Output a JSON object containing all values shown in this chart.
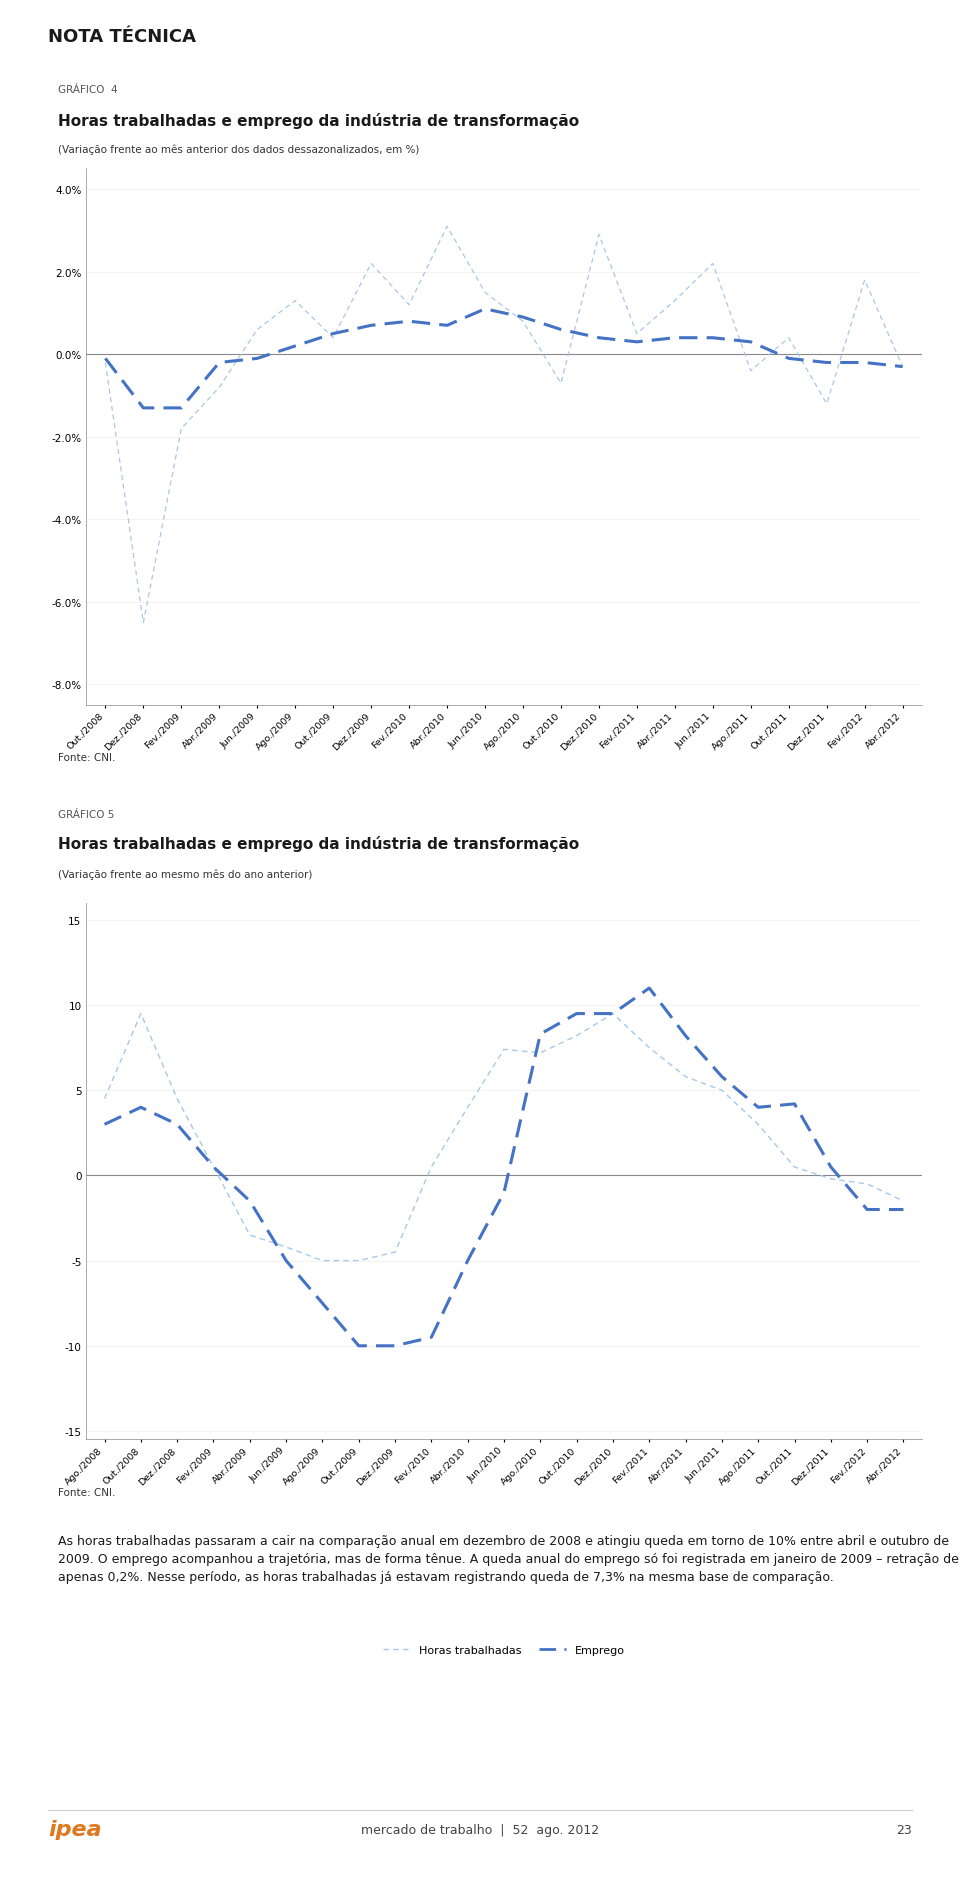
{
  "page_title": "NOTA TÉCNICA",
  "chart4": {
    "grafico_label": "GRÁFICO  4",
    "title": "Horas trabalhadas e emprego da indústria de transformação",
    "subtitle": "(Variação frente ao mês anterior dos dados dessazonalizados, em %)",
    "fonte": "Fonte: CNI.",
    "ylim": [
      -8.5,
      4.5
    ],
    "yticks": [
      4.0,
      2.0,
      0.0,
      -2.0,
      -4.0,
      -6.0,
      -8.0
    ],
    "x_labels": [
      "Out./2008",
      "Dez./2008",
      "Fev./2009",
      "Abr./2009",
      "Jun./2009",
      "Ago./2009",
      "Out./2009",
      "Dez./2009",
      "Fev./2010",
      "Abr./2010",
      "Jun./2010",
      "Ago./2010",
      "Out./2010",
      "Dez./2010",
      "Fev./2011",
      "Abr./2011",
      "Jun./2011",
      "Ago./2011",
      "Out./2011",
      "Dez./2011",
      "Fev./2012",
      "Abr./2012"
    ],
    "emprego": [
      -0.1,
      -1.3,
      -1.3,
      -0.2,
      -0.1,
      0.2,
      0.5,
      0.7,
      0.8,
      0.7,
      1.1,
      0.9,
      0.6,
      0.4,
      0.3,
      0.4,
      0.4,
      0.3,
      -0.1,
      -0.2,
      -0.2,
      -0.3
    ],
    "horas_trabalhadas": [
      -0.2,
      -6.5,
      -1.8,
      -0.8,
      0.6,
      1.3,
      0.4,
      2.2,
      1.2,
      3.1,
      1.5,
      0.8,
      -0.7,
      2.9,
      0.5,
      1.3,
      2.2,
      -0.4,
      0.4,
      -1.2,
      1.8,
      -0.3
    ],
    "legend_emprego": "Emprego",
    "legend_horas": "Horas trabalhadas"
  },
  "chart5": {
    "grafico_label": "GRÁFICO 5",
    "title": "Horas trabalhadas e emprego da indústria de transformação",
    "subtitle": "(Variação frente ao mesmo mês do ano anterior)",
    "fonte": "Fonte: CNI.",
    "ylim": [
      -15.5,
      16.0
    ],
    "yticks": [
      15,
      10,
      5,
      0,
      -5,
      -10,
      -15
    ],
    "x_labels": [
      "Ago./2008",
      "Out./2008",
      "Dez./2008",
      "Fev./2009",
      "Abr./2009",
      "Jun./2009",
      "Ago./2009",
      "Out./2009",
      "Dez./2009",
      "Fev./2010",
      "Abr./2010",
      "Jun./2010",
      "Ago./2010",
      "Out./2010",
      "Dez./2010",
      "Fev./2011",
      "Abr./2011",
      "Jun./2011",
      "Ago./2011",
      "Out./2011",
      "Dez./2011",
      "Fev./2012",
      "Abr./2012"
    ],
    "horas_trabalhadas": [
      4.5,
      9.5,
      4.5,
      0.5,
      -3.5,
      -4.2,
      -5.0,
      -5.0,
      -4.5,
      0.5,
      4.0,
      7.4,
      7.2,
      8.2,
      9.5,
      7.5,
      5.8,
      5.0,
      3.0,
      0.5,
      -0.2,
      -0.5,
      -1.5
    ],
    "emprego": [
      3.0,
      4.0,
      3.0,
      0.5,
      -1.5,
      -5.0,
      -7.5,
      -10.0,
      -10.0,
      -9.5,
      -5.0,
      -1.0,
      8.3,
      9.5,
      9.5,
      11.0,
      8.2,
      5.8,
      4.0,
      4.2,
      0.5,
      -2.0,
      -2.0
    ],
    "legend_horas": "Horas trabalhadas",
    "legend_emprego": "Emprego"
  },
  "body_text": "As horas trabalhadas passaram a cair na comparação anual em dezembro de 2008 e atingiu queda em torno de 10% entre abril e outubro de 2009. O emprego acompanhou a trajetória, mas de forma tênue. A queda anual do emprego só foi registrada em janeiro de 2009 – retração de apenas 0,2%. Nesse período, as horas trabalhadas já estavam registrando queda de 7,3% na mesma base de comparação.",
  "footer_left": "ipea",
  "footer_center": "mercado de trabalho",
  "footer_pipe": "|",
  "footer_issue": "52",
  "footer_date": "ago. 2012",
  "footer_page": "23",
  "line_color": "#4472c4",
  "horas_color": "#a8c8e8",
  "bg_color": "#ffffff",
  "text_color": "#1a1a1a",
  "axis_color": "#888888",
  "gray_color": "#aaaaaa"
}
